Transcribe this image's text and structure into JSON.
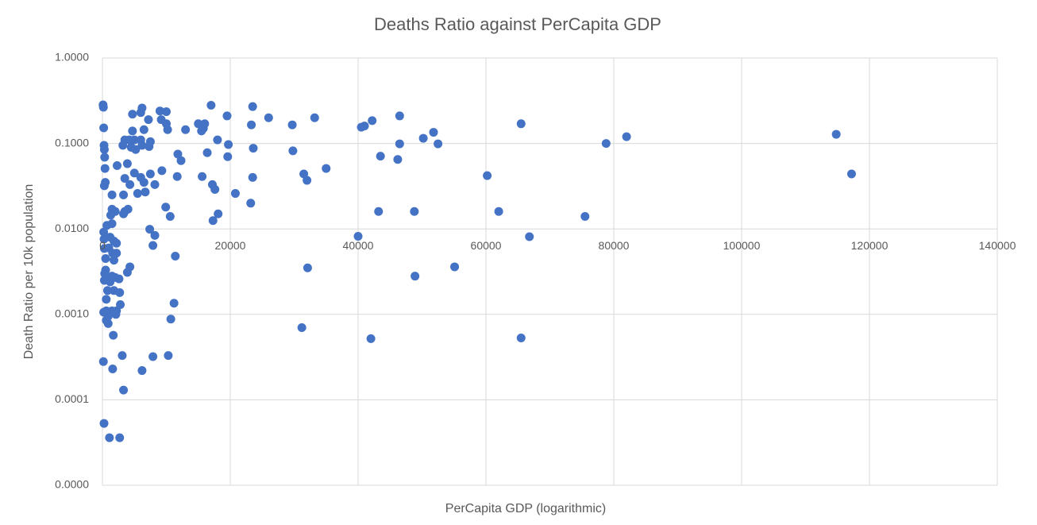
{
  "chart_data": {
    "type": "scatter",
    "title": "Deaths Ratio against PerCapita GDP",
    "xlabel": "PerCapita GDP (logarithmic)",
    "ylabel": "Death Ratio per 10k population",
    "color": "#4472c4",
    "ylog": true,
    "grid": true,
    "x_axis_at": 0.01,
    "xlim": [
      0,
      140000
    ],
    "xticks": [
      0,
      20000,
      40000,
      60000,
      80000,
      100000,
      120000,
      140000
    ],
    "ylim": [
      1e-05,
      1
    ],
    "yticks": [
      {
        "value": 1e-05,
        "label": "0.0000"
      },
      {
        "value": 0.0001,
        "label": "0.0001"
      },
      {
        "value": 0.001,
        "label": "0.0010"
      },
      {
        "value": 0.01,
        "label": "0.0100"
      },
      {
        "value": 0.1,
        "label": "0.1000"
      },
      {
        "value": 1,
        "label": "1.0000"
      }
    ],
    "x": [
      100,
      150,
      200,
      250,
      300,
      350,
      400,
      450,
      300,
      200,
      250,
      300,
      350,
      200,
      150,
      250,
      6200,
      6000,
      9000,
      10000,
      17000,
      23500,
      19500,
      4700,
      7200,
      9200,
      10000,
      10200,
      13000,
      15000,
      15500,
      16000,
      15800,
      6500,
      4700,
      3500,
      4200,
      5000,
      6000,
      3200,
      4500,
      5200,
      6200,
      7500,
      7300,
      18000,
      19700,
      16400,
      11800,
      12300,
      2300,
      3900,
      5000,
      7500,
      9300,
      11700,
      15600,
      3500,
      4300,
      6500,
      8200,
      6000,
      17200,
      17600,
      1500,
      3300,
      5500,
      6700,
      20800,
      23200,
      9900,
      1500,
      2000,
      3500,
      4000,
      10600,
      18100,
      17300,
      1300,
      3300,
      700,
      1500,
      7400,
      8200,
      7900,
      11400,
      1200,
      1800,
      2200,
      1000,
      1600,
      2200,
      500,
      1800,
      4300,
      3900,
      500,
      800,
      1500,
      2000,
      2600,
      300,
      1200,
      800,
      1800,
      2700,
      600,
      2800,
      11200,
      600,
      1500,
      2200,
      2100,
      900,
      600,
      900,
      10700,
      1700,
      3100,
      7900,
      10300,
      1600,
      6200,
      3300,
      1100,
      2700,
      23300,
      26000,
      29700,
      33200,
      40500,
      41000,
      42200,
      46500,
      29800,
      23600,
      19600,
      23500,
      31500,
      32000,
      35000,
      43500,
      46200,
      46500,
      50200,
      51800,
      52500,
      60200,
      65500,
      78800,
      82000,
      114800,
      117200,
      43200,
      48800,
      62000,
      75500,
      40000,
      66800,
      32100,
      48900,
      55100,
      31200,
      42000,
      65500
    ],
    "values": [
      0.283,
      0.265,
      0.152,
      0.095,
      0.085,
      0.069,
      0.051,
      0.035,
      0.032,
      0.0092,
      0.0076,
      0.0059,
      0.003,
      0.00106,
      0.00028,
      5.3e-05,
      0.26,
      0.23,
      0.24,
      0.235,
      0.28,
      0.27,
      0.21,
      0.22,
      0.19,
      0.19,
      0.17,
      0.145,
      0.145,
      0.17,
      0.14,
      0.17,
      0.15,
      0.145,
      0.14,
      0.11,
      0.11,
      0.11,
      0.11,
      0.095,
      0.09,
      0.085,
      0.095,
      0.105,
      0.092,
      0.11,
      0.097,
      0.078,
      0.075,
      0.063,
      0.055,
      0.058,
      0.045,
      0.044,
      0.048,
      0.041,
      0.041,
      0.039,
      0.033,
      0.035,
      0.033,
      0.04,
      0.033,
      0.029,
      0.025,
      0.025,
      0.026,
      0.027,
      0.026,
      0.02,
      0.018,
      0.017,
      0.016,
      0.016,
      0.017,
      0.014,
      0.015,
      0.0125,
      0.0145,
      0.015,
      0.011,
      0.0115,
      0.0099,
      0.0084,
      0.0064,
      0.0048,
      0.008,
      0.0072,
      0.0068,
      0.006,
      0.0052,
      0.0052,
      0.0045,
      0.0043,
      0.0036,
      0.0031,
      0.0033,
      0.0027,
      0.0028,
      0.0027,
      0.0026,
      0.0025,
      0.0024,
      0.0019,
      0.0019,
      0.0018,
      0.0015,
      0.0013,
      0.00135,
      0.0011,
      0.0011,
      0.0011,
      0.001,
      0.00095,
      0.00085,
      0.00078,
      0.00088,
      0.00057,
      0.00033,
      0.00032,
      0.00033,
      0.00023,
      0.00022,
      0.00013,
      3.6e-05,
      3.6e-05,
      0.165,
      0.2,
      0.165,
      0.2,
      0.155,
      0.16,
      0.185,
      0.21,
      0.082,
      0.088,
      0.07,
      0.04,
      0.044,
      0.037,
      0.051,
      0.071,
      0.065,
      0.099,
      0.115,
      0.135,
      0.099,
      0.042,
      0.17,
      0.1,
      0.12,
      0.128,
      0.044,
      0.016,
      0.016,
      0.016,
      0.014,
      0.0082,
      0.0081,
      0.0035,
      0.0028,
      0.0036,
      0.0007,
      0.00052,
      0.00053
    ]
  }
}
